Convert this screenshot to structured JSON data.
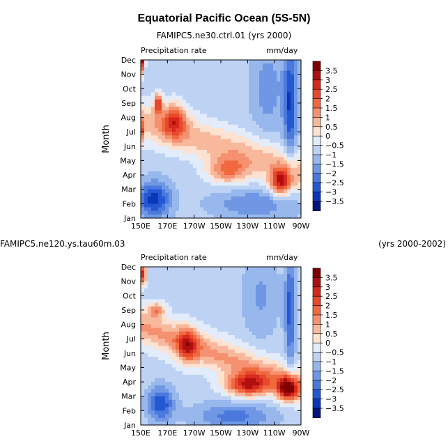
{
  "title": "Equatorial Pacific Ocean (5S-5N)",
  "chart_data": [
    {
      "type": "heatmap",
      "subtitle_left": "FAMIPC5.ne30.ctrl.01",
      "subtitle_right": "(yrs 2000)",
      "subtitle_full": "FAMIPC5.ne30.ctrl.01 (yrs 2000)",
      "variable": "Precipitation rate",
      "units": "mm/day",
      "ylabel": "Month",
      "x_ticks": [
        "150E",
        "170E",
        "170W",
        "150W",
        "130W",
        "110W",
        "90W"
      ],
      "x_values": [
        150,
        170,
        190,
        210,
        230,
        250,
        270
      ],
      "y_ticks": [
        "Jan",
        "Feb",
        "Mar",
        "Apr",
        "May",
        "Jun",
        "Jul",
        "Aug",
        "Sep",
        "Oct",
        "Nov",
        "Dec"
      ],
      "features": [
        {
          "lon": 151,
          "month": 12,
          "sx": 2,
          "sy": 0.9,
          "a": 4.0
        },
        {
          "lon": 163,
          "month": 9,
          "sx": 3,
          "sy": 0.7,
          "a": 3.0
        },
        {
          "lon": 175,
          "month": 7.8,
          "sx": 9,
          "sy": 1.2,
          "a": 2.5
        },
        {
          "lon": 150,
          "month": 7,
          "sx": 2,
          "sy": 0.8,
          "a": 2.5
        },
        {
          "lon": 215,
          "month": 4.3,
          "sx": 15,
          "sy": 0.9,
          "a": 2.2
        },
        {
          "lon": 255,
          "month": 3.5,
          "sx": 8,
          "sy": 0.9,
          "a": 3.5
        },
        {
          "lon": 160,
          "month": 2.3,
          "sx": 12,
          "sy": 1.2,
          "a": -2.5
        },
        {
          "lon": 262,
          "month": 9,
          "sx": 5,
          "sy": 4,
          "a": -2.2
        },
        {
          "lon": 245,
          "month": 10,
          "sx": 12,
          "sy": 3,
          "a": -1.0
        },
        {
          "lon": 235,
          "month": 2,
          "sx": 30,
          "sy": 1,
          "a": -1.2
        }
      ],
      "background": -0.8,
      "diagonal": {
        "a": 1.6,
        "lon0": 160,
        "month0": 7.5,
        "slope": -0.03,
        "sy": 1.4
      }
    },
    {
      "type": "heatmap",
      "subtitle_left": "FAMIPC5.ne120.ys.tau60m.03",
      "subtitle_right": "(yrs 2000-2002)",
      "variable": "Precipitation rate",
      "units": "mm/day",
      "ylabel": "Month",
      "x_ticks": [
        "150E",
        "170E",
        "170W",
        "150W",
        "130W",
        "110W",
        "90W"
      ],
      "x_values": [
        150,
        170,
        190,
        210,
        230,
        250,
        270
      ],
      "y_ticks": [
        "Jan",
        "Feb",
        "Mar",
        "Apr",
        "May",
        "Jun",
        "Jul",
        "Aug",
        "Sep",
        "Oct",
        "Nov",
        "Dec"
      ],
      "features": [
        {
          "lon": 152,
          "month": 11.5,
          "sx": 2,
          "sy": 0.7,
          "a": 4.0
        },
        {
          "lon": 162,
          "month": 9,
          "sx": 6,
          "sy": 0.5,
          "a": 2.0
        },
        {
          "lon": 185,
          "month": 6.5,
          "sx": 8,
          "sy": 1.2,
          "a": 2.5
        },
        {
          "lon": 230,
          "month": 3.8,
          "sx": 16,
          "sy": 0.8,
          "a": 3.5
        },
        {
          "lon": 260,
          "month": 3.5,
          "sx": 7,
          "sy": 0.8,
          "a": 4.0
        },
        {
          "lon": 165,
          "month": 2.5,
          "sx": 10,
          "sy": 1.2,
          "a": -2.2
        },
        {
          "lon": 262,
          "month": 9,
          "sx": 4,
          "sy": 4,
          "a": -2.0
        },
        {
          "lon": 240,
          "month": 10,
          "sx": 14,
          "sy": 3,
          "a": -0.9
        },
        {
          "lon": 220,
          "month": 1.6,
          "sx": 30,
          "sy": 1,
          "a": -1.5
        }
      ],
      "background": -0.7,
      "diagonal": {
        "a": 1.8,
        "lon0": 175,
        "month0": 7,
        "slope": -0.035,
        "sy": 1.2
      }
    }
  ],
  "colorbar": {
    "labels": [
      "3.5",
      "3",
      "2.5",
      "2",
      "1.5",
      "1",
      "0.5",
      "0",
      "−0.5",
      "−1",
      "−1.5",
      "−2",
      "−2.5",
      "−3",
      "−3.5"
    ],
    "levels": [
      3.5,
      3,
      2.5,
      2,
      1.5,
      1,
      0.5,
      0,
      -0.5,
      -1,
      -1.5,
      -2,
      -2.5,
      -3,
      -3.5
    ],
    "colors": [
      "#800000",
      "#b00f0f",
      "#d6281e",
      "#e8482c",
      "#f0693f",
      "#f59070",
      "#f8b89c",
      "#fde2d2",
      "#e2ecfb",
      "#bed3f4",
      "#98b8ed",
      "#6f97e3",
      "#4a78dc",
      "#2458d3",
      "#0a36b8",
      "#001480"
    ]
  }
}
